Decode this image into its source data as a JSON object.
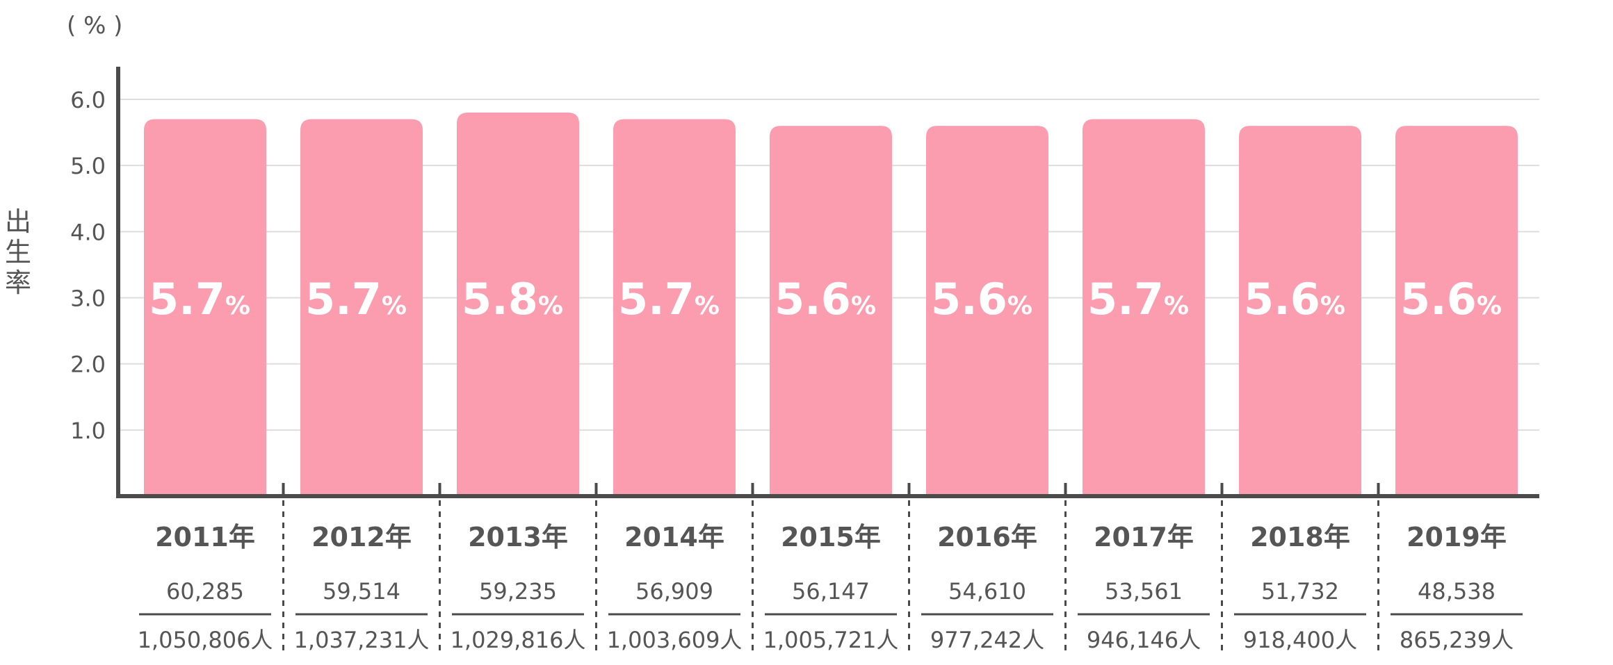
{
  "chart_data": {
    "type": "bar",
    "unit_label": "( % )",
    "ylabel": "出生率",
    "ylim": [
      0,
      6.0
    ],
    "yticks": [
      "1.0",
      "2.0",
      "3.0",
      "4.0",
      "5.0",
      "6.0"
    ],
    "grid": true,
    "categories": [
      "2011年",
      "2012年",
      "2013年",
      "2014年",
      "2015年",
      "2016年",
      "2017年",
      "2018年",
      "2019年"
    ],
    "values": [
      5.7,
      5.7,
      5.8,
      5.7,
      5.6,
      5.6,
      5.7,
      5.6,
      5.6
    ],
    "value_labels": [
      "5.7",
      "5.7",
      "5.8",
      "5.7",
      "5.6",
      "5.6",
      "5.7",
      "5.6",
      "5.6"
    ],
    "value_suffix": "%",
    "numerators": [
      "60,285",
      "59,514",
      "59,235",
      "56,909",
      "56,147",
      "54,610",
      "53,561",
      "51,732",
      "48,538"
    ],
    "denominators": [
      "1,050,806人",
      "1,037,231人",
      "1,029,816人",
      "1,003,609人",
      "1,005,721人",
      "977,242人",
      "946,146人",
      "918,400人",
      "865,239人"
    ]
  },
  "colors": {
    "bar": "#fc9daf",
    "axis": "#4a4a4a",
    "grid": "#dddddd",
    "text": "#555555",
    "bar_label": "#ffffff"
  }
}
